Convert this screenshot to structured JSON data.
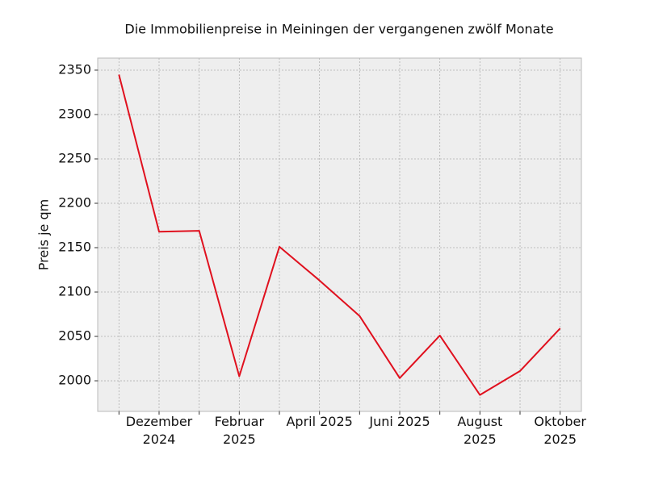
{
  "chart_data": {
    "type": "line",
    "title": "Die Immobilienpreise in Meiningen der vergangenen zwölf Monate",
    "y_label": "Preis je qm",
    "categories": [
      null,
      "Dezember 2024",
      null,
      "Februar 2025",
      null,
      "April 2025",
      null,
      "Juni 2025",
      null,
      "August 2025",
      null,
      "Oktober 2025"
    ],
    "series": [
      {
        "name": "Preis je qm",
        "color": "#e0101e",
        "values": [
          2345,
          2168,
          2169,
          2005,
          2151,
          2113,
          2073,
          2003,
          2051,
          1984,
          2011,
          2059
        ]
      }
    ],
    "ylim": [
      1965.5,
      2363.6
    ],
    "yticks": [
      2000,
      2050,
      2100,
      2150,
      2200,
      2250,
      2300,
      2350
    ],
    "grid": true
  }
}
